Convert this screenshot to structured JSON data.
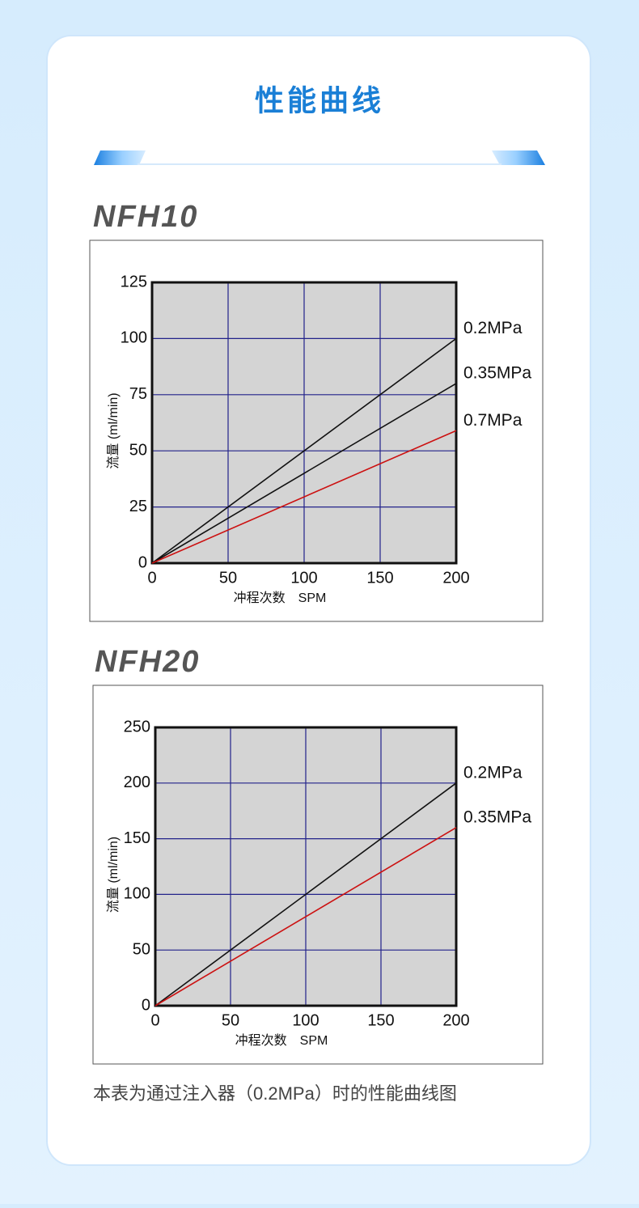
{
  "page": {
    "title": "性能曲线",
    "note": "本表为通过注入器（0.2MPa）时的性能曲线图"
  },
  "chart_data": [
    {
      "type": "line",
      "title": "NFH10",
      "x_label": "冲程次数　SPM",
      "y_label": "流量 (ml/min)",
      "x": [
        0,
        200
      ],
      "series": [
        {
          "name": "0.2MPa",
          "color": "#111111",
          "values": [
            0,
            100
          ]
        },
        {
          "name": "0.35MPa",
          "color": "#111111",
          "values": [
            0,
            80
          ]
        },
        {
          "name": "0.7MPa",
          "color": "#cc1111",
          "values": [
            0,
            59
          ]
        }
      ],
      "xlim": [
        0,
        200
      ],
      "xticks": [
        0,
        50,
        100,
        150,
        200
      ],
      "ylim": [
        0,
        125
      ],
      "yticks": [
        0,
        25,
        50,
        75,
        100,
        125
      ],
      "grid": true
    },
    {
      "type": "line",
      "title": "NFH20",
      "x_label": "冲程次数　SPM",
      "y_label": "流量 (ml/min)",
      "x": [
        0,
        200
      ],
      "series": [
        {
          "name": "0.2MPa",
          "color": "#111111",
          "values": [
            0,
            200
          ]
        },
        {
          "name": "0.35MPa",
          "color": "#cc1111",
          "values": [
            0,
            160
          ]
        }
      ],
      "xlim": [
        0,
        200
      ],
      "xticks": [
        0,
        50,
        100,
        150,
        200
      ],
      "ylim": [
        0,
        250
      ],
      "yticks": [
        0,
        50,
        100,
        150,
        200,
        250
      ],
      "grid": true
    }
  ]
}
